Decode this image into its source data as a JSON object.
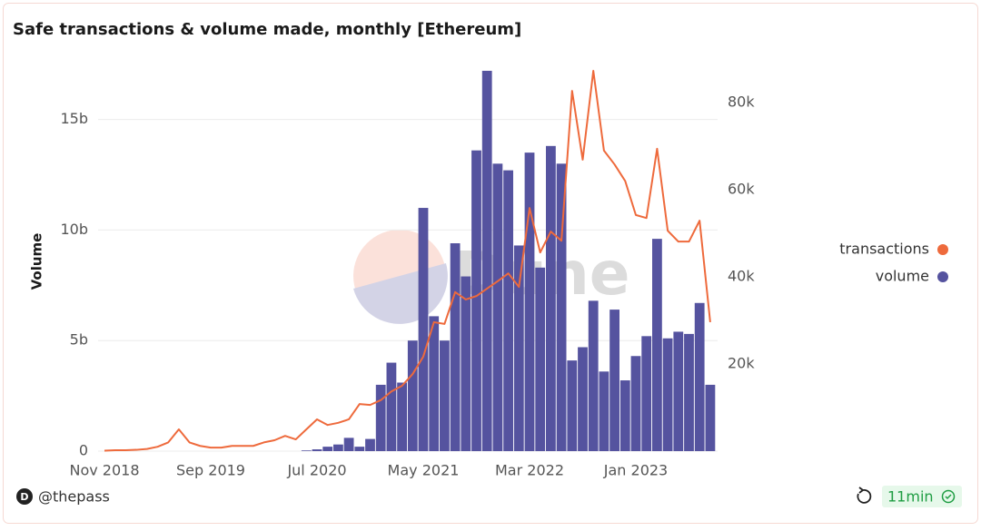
{
  "chart_data": {
    "type": "bar_line",
    "title": "Safe transactions & volume made, monthly [Ethereum]",
    "y_axis_label": "Volume",
    "watermark": "Dune",
    "author": "@thepass",
    "refresh_age": "11min",
    "categories": [
      "Nov 2018",
      null,
      null,
      null,
      null,
      null,
      null,
      null,
      null,
      null,
      "Sep 2019",
      null,
      null,
      null,
      null,
      null,
      null,
      null,
      null,
      null,
      "Jul 2020",
      null,
      null,
      null,
      null,
      null,
      null,
      null,
      null,
      null,
      "May 2021",
      null,
      null,
      null,
      null,
      null,
      null,
      null,
      null,
      null,
      "Mar 2022",
      null,
      null,
      null,
      null,
      null,
      null,
      null,
      null,
      null,
      "Jan 2023",
      null,
      null,
      null,
      null,
      null,
      null,
      null
    ],
    "series": [
      {
        "name": "transactions",
        "color": "#ee6a3c",
        "axis": "y2",
        "kind": "line",
        "values": [
          0.1,
          0.2,
          0.2,
          0.3,
          0.5,
          1,
          2,
          5,
          2,
          1.2,
          0.8,
          0.8,
          1.2,
          1.2,
          1.2,
          2,
          2.5,
          3.5,
          2.7,
          5,
          7.3,
          6,
          6.5,
          7.3,
          10.8,
          10.6,
          11.7,
          13.7,
          15,
          17.7,
          21.7,
          29.6,
          29.2,
          36.5,
          34.8,
          35.6,
          37.3,
          39,
          40.8,
          37.7,
          55.8,
          45.6,
          50.4,
          48.3,
          82.7,
          66.9,
          87.3,
          69,
          65.8,
          62,
          54.2,
          53.5,
          69.4,
          50.6,
          48.1,
          48.1,
          52.9,
          29.6
        ]
      },
      {
        "name": "volume",
        "color": "#55539f",
        "axis": "y",
        "kind": "bar",
        "values": [
          0,
          0,
          0,
          0,
          0,
          0,
          0,
          0,
          0,
          0,
          0,
          0,
          0,
          0,
          0,
          0,
          0,
          0,
          0,
          0.03,
          0.08,
          0.2,
          0.3,
          0.6,
          0.2,
          0.55,
          3.0,
          4.0,
          3.1,
          5.0,
          11.0,
          6.1,
          5.0,
          9.4,
          7.9,
          13.6,
          17.2,
          13.0,
          12.7,
          9.3,
          13.5,
          8.3,
          13.8,
          13.0,
          4.1,
          4.7,
          6.8,
          3.6,
          6.4,
          3.2,
          4.3,
          5.2,
          9.6,
          5.1,
          5.4,
          5.3,
          6.7,
          3.0
        ]
      }
    ],
    "ylim": [
      0,
      17.2
    ],
    "yticks": [
      {
        "value": 0,
        "label": "0"
      },
      {
        "value": 5,
        "label": "5b"
      },
      {
        "value": 10,
        "label": "10b"
      },
      {
        "value": 15,
        "label": "15b"
      }
    ],
    "y2lim": [
      0,
      87.3
    ],
    "y2ticks": [
      {
        "value": 20,
        "label": "20k"
      },
      {
        "value": 40,
        "label": "40k"
      },
      {
        "value": 60,
        "label": "60k"
      },
      {
        "value": 80,
        "label": "80k"
      }
    ],
    "grid": true,
    "legend": "right"
  }
}
